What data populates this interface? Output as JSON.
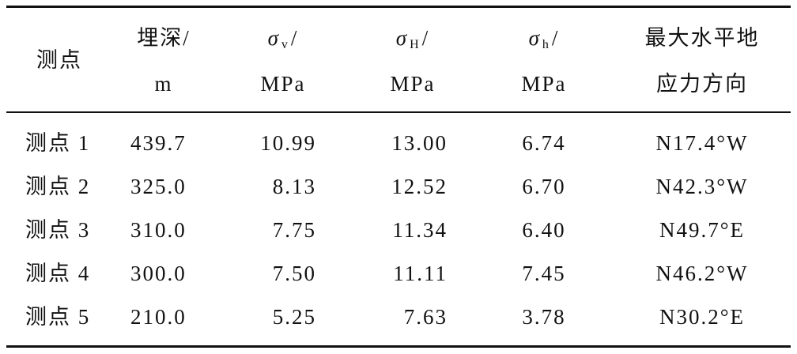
{
  "table": {
    "header": [
      {
        "text": "测点"
      },
      {
        "main": "埋深/",
        "unit": "m"
      },
      {
        "main": "σ",
        "sub": "v",
        "tail": "/",
        "unit": "MPa"
      },
      {
        "main": "σ",
        "sub": "H",
        "tail": "/",
        "unit": "MPa"
      },
      {
        "main": "σ",
        "sub": "h",
        "tail": "/",
        "unit": "MPa"
      },
      {
        "main": "最大水平地",
        "unit": "应力方向"
      }
    ],
    "rows": [
      [
        "测点 1",
        "439.7",
        "10.99",
        "13.00",
        "6.74",
        "N17.4°W"
      ],
      [
        "测点 2",
        "325.0",
        "8.13",
        "12.52",
        "6.70",
        "N42.3°W"
      ],
      [
        "测点 3",
        "310.0",
        "7.75",
        "11.34",
        "6.40",
        "N49.7°E"
      ],
      [
        "测点 4",
        "300.0",
        "7.50",
        "11.11",
        "7.45",
        "N46.2°W"
      ],
      [
        "测点 5",
        "210.0",
        "5.25",
        "7.63",
        "3.78",
        "N30.2°E"
      ]
    ]
  }
}
